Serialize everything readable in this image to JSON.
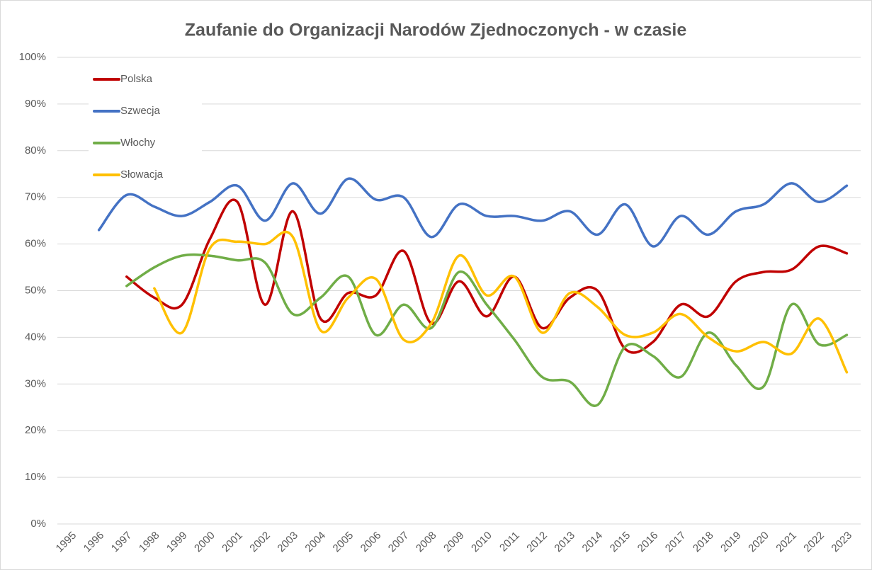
{
  "chart_data": {
    "type": "line",
    "title": "Zaufanie do Organizacji Narodów Zjednoczonych - w czasie",
    "categories": [
      "1995",
      "1996",
      "1997",
      "1998",
      "1999",
      "2000",
      "2001",
      "2002",
      "2003",
      "2004",
      "2005",
      "2006",
      "2007",
      "2008",
      "2009",
      "2010",
      "2011",
      "2012",
      "2013",
      "2014",
      "2015",
      "2016",
      "2017",
      "2018",
      "2019",
      "2020",
      "2021",
      "2022",
      "2023"
    ],
    "series": [
      {
        "name": "Polska",
        "color": "#c00000",
        "values": [
          null,
          null,
          53,
          48.5,
          47,
          61,
          69,
          47,
          67,
          44,
          49.5,
          49,
          58.5,
          43,
          52,
          44.5,
          53,
          42,
          48.5,
          50,
          37.5,
          39,
          47,
          44.5,
          52,
          54,
          54.5,
          59.5,
          58
        ]
      },
      {
        "name": "Szwecja",
        "color": "#4472c4",
        "values": [
          null,
          63,
          70.5,
          68,
          66,
          69,
          72.5,
          65,
          73,
          66.5,
          74,
          69.5,
          70,
          61.5,
          68.5,
          66,
          66,
          65,
          67,
          62,
          68.5,
          59.5,
          66,
          62,
          67,
          68.5,
          73,
          69,
          72.5
        ]
      },
      {
        "name": "Włochy",
        "color": "#70ad47",
        "values": [
          null,
          null,
          51,
          55,
          57.5,
          57.5,
          56.5,
          56,
          45,
          48.5,
          53,
          40.5,
          47,
          42,
          54,
          47,
          39.5,
          31.5,
          30.5,
          25.5,
          38,
          36,
          31.5,
          41,
          34,
          29.5,
          47,
          38.5,
          40.5
        ]
      },
      {
        "name": "Słowacja",
        "color": "#ffc000",
        "values": [
          null,
          null,
          null,
          50.5,
          41,
          59,
          60.5,
          60,
          61.5,
          41.5,
          48.5,
          52.5,
          39.5,
          43,
          57.5,
          49,
          53,
          41,
          49.5,
          46.5,
          40.5,
          41,
          45,
          40,
          37,
          39,
          36.5,
          44,
          32.5
        ]
      }
    ],
    "ylim": [
      0,
      100
    ],
    "yticks": [
      {
        "value": 0,
        "label": "0%"
      },
      {
        "value": 10,
        "label": "10%"
      },
      {
        "value": 20,
        "label": "20%"
      },
      {
        "value": 30,
        "label": "30%"
      },
      {
        "value": 40,
        "label": "40%"
      },
      {
        "value": 50,
        "label": "50%"
      },
      {
        "value": 60,
        "label": "60%"
      },
      {
        "value": 70,
        "label": "70%"
      },
      {
        "value": 80,
        "label": "80%"
      },
      {
        "value": 90,
        "label": "90%"
      },
      {
        "value": 100,
        "label": "100%"
      }
    ],
    "grid": true,
    "smooth": true,
    "legend": "upper left"
  }
}
